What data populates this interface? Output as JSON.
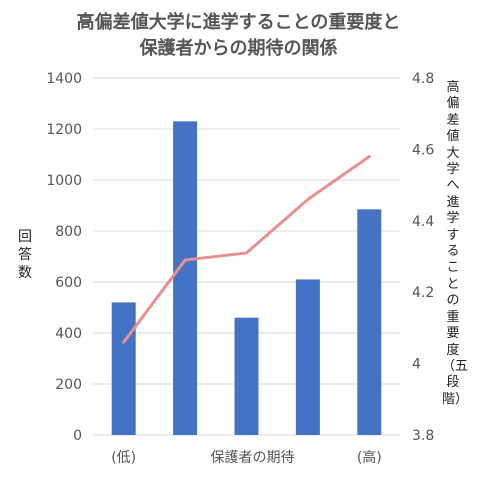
{
  "chart_data": {
    "type": "bar",
    "title_line1": "高偏差値大学に進学することの重要度と",
    "title_line2": "保護者からの期待の関係",
    "xlabel": "保護者の期待",
    "xtick_low": "(低)",
    "xtick_high": "(高)",
    "ylabel": "回答数",
    "ylabel_right": "高偏差値大学へ進学することの重要度（五段階）",
    "ylim": [
      0,
      1400
    ],
    "yticks": [
      "0",
      "200",
      "400",
      "600",
      "800",
      "1000",
      "1200",
      "1400"
    ],
    "y2lim": [
      3.8,
      4.8
    ],
    "y2ticks": [
      "3.8",
      "4",
      "4.2",
      "4.4",
      "4.6",
      "4.8"
    ],
    "categories": [
      1,
      2,
      3,
      4,
      5
    ],
    "series": [
      {
        "type": "bar",
        "values": [
          520,
          1230,
          460,
          610,
          885
        ]
      },
      {
        "type": "line",
        "axis": "right",
        "values": [
          4.06,
          4.29,
          4.31,
          4.46,
          4.58
        ]
      }
    ],
    "colors": {
      "bar": "#4472C4",
      "line": "#E8908F",
      "axis_text": "#555555",
      "gridline": "#D9D9D9"
    }
  }
}
